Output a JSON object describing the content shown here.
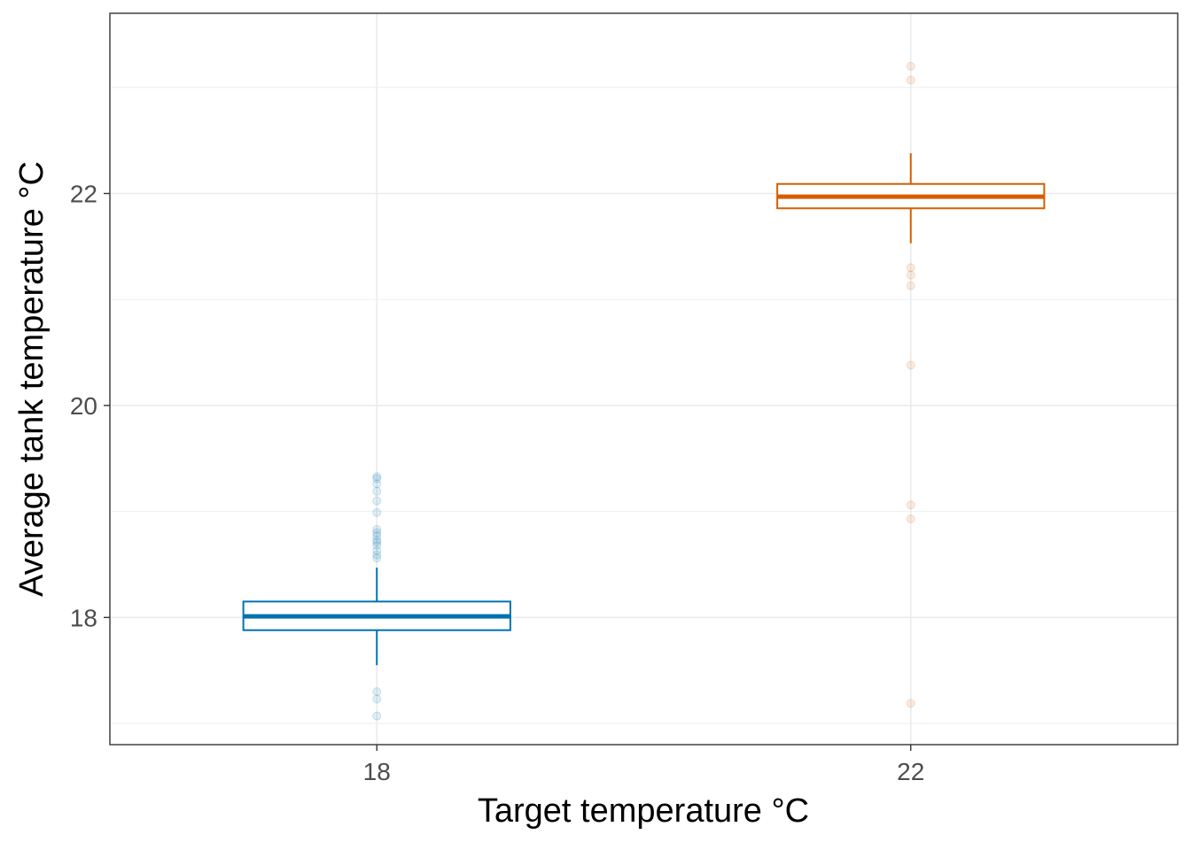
{
  "chart_data": {
    "type": "box",
    "xlabel": "Target temperature °C",
    "ylabel": "Average tank temperature °C",
    "categories": [
      "18",
      "22"
    ],
    "ylim": [
      16.8,
      23.7
    ],
    "yticks": [
      18,
      20,
      22
    ],
    "ytick_labels": [
      "18",
      "20",
      "22"
    ],
    "grid": true,
    "legend": "none",
    "series": [
      {
        "category": "18",
        "color": "#0072B2",
        "whisker_low": 17.55,
        "q1": 17.88,
        "median": 18.01,
        "q3": 18.15,
        "whisker_high": 18.47,
        "outliers": [
          19.33,
          19.31,
          19.26,
          19.19,
          19.1,
          18.99,
          18.83,
          18.8,
          18.77,
          18.73,
          18.71,
          18.68,
          18.63,
          18.59,
          18.56,
          17.3,
          17.23,
          17.07
        ]
      },
      {
        "category": "22",
        "color": "#D55E00",
        "whisker_low": 21.53,
        "q1": 21.86,
        "median": 21.97,
        "q3": 22.09,
        "whisker_high": 22.38,
        "outliers": [
          23.2,
          23.07,
          21.3,
          21.23,
          21.13,
          20.38,
          19.06,
          18.93,
          17.19
        ]
      }
    ]
  }
}
